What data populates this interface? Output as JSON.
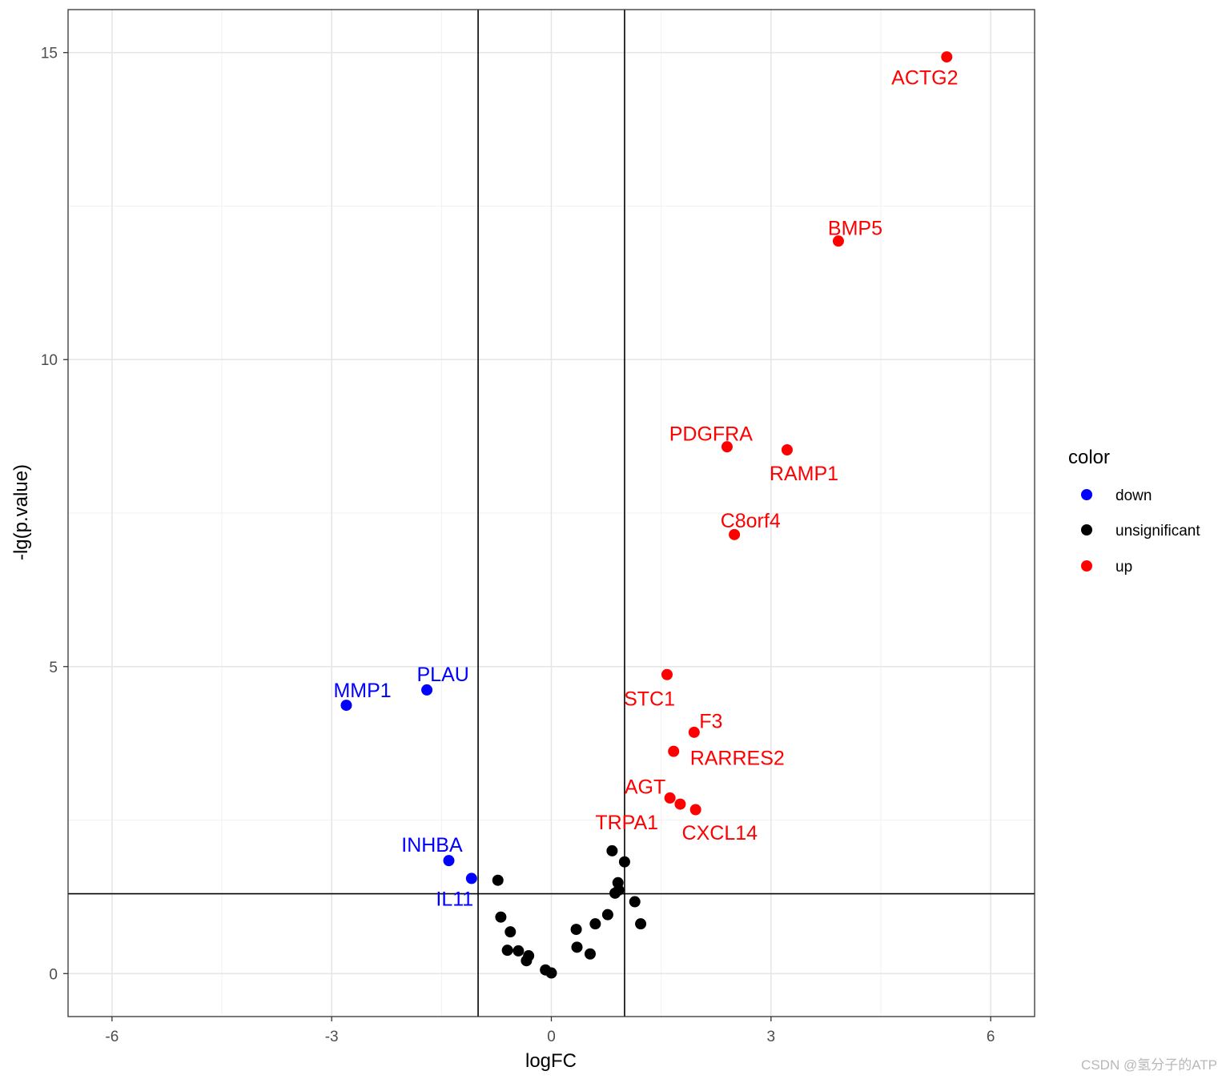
{
  "chart_data": {
    "type": "scatter",
    "title": "",
    "xlabel": "logFC",
    "ylabel": "-lg(p.value)",
    "xlim": [
      -6.6,
      6.6
    ],
    "ylim": [
      -0.7,
      15.7
    ],
    "x_ticks": [
      -6,
      -3,
      0,
      3,
      6
    ],
    "x_tick_labels": [
      "-6",
      "-3",
      "0",
      "3",
      "6"
    ],
    "y_ticks": [
      0,
      5,
      10,
      15
    ],
    "y_tick_labels": [
      "0",
      "5",
      "10",
      "15"
    ],
    "grid": true,
    "reference_lines": {
      "vertical": [
        -1,
        1
      ],
      "horizontal": [
        1.3
      ]
    },
    "colors": {
      "down": "#0000ff",
      "unsignificant": "#000000",
      "up": "#ff0000"
    },
    "legend": {
      "title": "color",
      "placement": "right",
      "entries": [
        {
          "key": "down",
          "label": "down"
        },
        {
          "key": "unsignificant",
          "label": "unsignificant"
        },
        {
          "key": "up",
          "label": "up"
        }
      ]
    },
    "points": [
      {
        "x": 5.4,
        "y": 14.93,
        "group": "up",
        "label": "ACTG2",
        "lx": 5.1,
        "ly": 14.6
      },
      {
        "x": 3.92,
        "y": 11.93,
        "group": "up",
        "label": "BMP5",
        "lx": 4.15,
        "ly": 12.15
      },
      {
        "x": 2.4,
        "y": 8.58,
        "group": "up",
        "label": "PDGFRA",
        "lx": 2.18,
        "ly": 8.8
      },
      {
        "x": 3.22,
        "y": 8.53,
        "group": "up",
        "label": "RAMP1",
        "lx": 3.45,
        "ly": 8.15
      },
      {
        "x": 2.5,
        "y": 7.15,
        "group": "up",
        "label": "C8orf4",
        "lx": 2.72,
        "ly": 7.38
      },
      {
        "x": 1.58,
        "y": 4.87,
        "group": "up",
        "label": "STC1",
        "lx": 1.34,
        "ly": 4.48
      },
      {
        "x": 1.95,
        "y": 3.93,
        "group": "up",
        "label": "F3",
        "lx": 2.18,
        "ly": 4.12
      },
      {
        "x": 1.67,
        "y": 3.62,
        "group": "up",
        "label": "RARRES2",
        "lx": 2.54,
        "ly": 3.52
      },
      {
        "x": 1.62,
        "y": 2.86,
        "group": "up",
        "label": "AGT",
        "lx": 1.28,
        "ly": 3.05
      },
      {
        "x": 1.76,
        "y": 2.76,
        "group": "up",
        "label": "TRPA1",
        "lx": 1.03,
        "ly": 2.47
      },
      {
        "x": 1.97,
        "y": 2.67,
        "group": "up",
        "label": "CXCL14",
        "lx": 2.3,
        "ly": 2.3
      },
      {
        "x": -1.7,
        "y": 4.62,
        "group": "down",
        "label": "PLAU",
        "lx": -1.48,
        "ly": 4.88
      },
      {
        "x": -2.8,
        "y": 4.37,
        "group": "down",
        "label": "MMP1",
        "lx": -2.58,
        "ly": 4.62
      },
      {
        "x": -1.4,
        "y": 1.84,
        "group": "down",
        "label": "INHBA",
        "lx": -1.63,
        "ly": 2.1
      },
      {
        "x": -1.09,
        "y": 1.55,
        "group": "down",
        "label": "IL11",
        "lx": -1.32,
        "ly": 1.22
      },
      {
        "x": 0.83,
        "y": 2.0,
        "group": "unsignificant",
        "label": ""
      },
      {
        "x": 1.0,
        "y": 1.82,
        "group": "unsignificant",
        "label": ""
      },
      {
        "x": -0.73,
        "y": 1.52,
        "group": "unsignificant",
        "label": ""
      },
      {
        "x": 0.91,
        "y": 1.48,
        "group": "unsignificant",
        "label": ""
      },
      {
        "x": 0.92,
        "y": 1.36,
        "group": "unsignificant",
        "label": ""
      },
      {
        "x": 0.87,
        "y": 1.31,
        "group": "unsignificant",
        "label": ""
      },
      {
        "x": 1.14,
        "y": 1.17,
        "group": "unsignificant",
        "label": ""
      },
      {
        "x": -0.69,
        "y": 0.92,
        "group": "unsignificant",
        "label": ""
      },
      {
        "x": 0.77,
        "y": 0.96,
        "group": "unsignificant",
        "label": ""
      },
      {
        "x": 0.6,
        "y": 0.81,
        "group": "unsignificant",
        "label": ""
      },
      {
        "x": 1.22,
        "y": 0.81,
        "group": "unsignificant",
        "label": ""
      },
      {
        "x": 0.34,
        "y": 0.72,
        "group": "unsignificant",
        "label": ""
      },
      {
        "x": -0.56,
        "y": 0.68,
        "group": "unsignificant",
        "label": ""
      },
      {
        "x": -0.6,
        "y": 0.38,
        "group": "unsignificant",
        "label": ""
      },
      {
        "x": -0.45,
        "y": 0.37,
        "group": "unsignificant",
        "label": ""
      },
      {
        "x": 0.35,
        "y": 0.43,
        "group": "unsignificant",
        "label": ""
      },
      {
        "x": 0.53,
        "y": 0.32,
        "group": "unsignificant",
        "label": ""
      },
      {
        "x": -0.31,
        "y": 0.29,
        "group": "unsignificant",
        "label": ""
      },
      {
        "x": -0.34,
        "y": 0.21,
        "group": "unsignificant",
        "label": ""
      },
      {
        "x": -0.08,
        "y": 0.06,
        "group": "unsignificant",
        "label": ""
      },
      {
        "x": 0.0,
        "y": 0.01,
        "group": "unsignificant",
        "label": ""
      }
    ]
  },
  "watermark": "CSDN @氢分子的ATP"
}
